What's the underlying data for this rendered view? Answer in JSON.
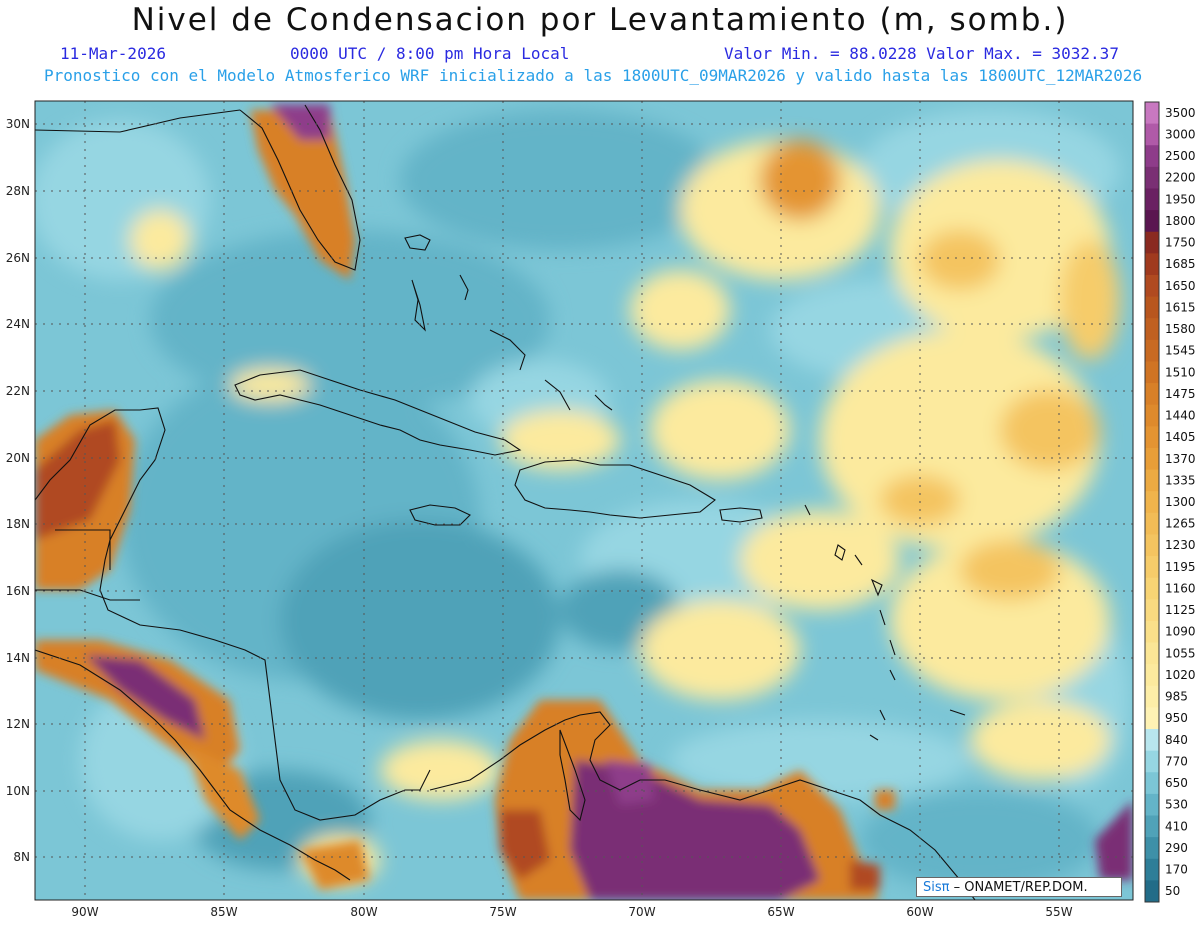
{
  "header": {
    "title": "Nivel de Condensacion por Levantamiento (m, somb.)",
    "date": "11-Mar-2026",
    "time": "0000 UTC / 8:00 pm Hora Local",
    "minmax": "Valor Min. = 88.0228   Valor Max. = 3032.37",
    "model_line": "Pronostico con el Modelo Atmosferico WRF inicializado a las 1800UTC_09MAR2026 y valido hasta las  1800UTC_12MAR2026"
  },
  "map": {
    "lat_labels": [
      "30N",
      "28N",
      "26N",
      "24N",
      "22N",
      "20N",
      "18N",
      "16N",
      "14N",
      "12N",
      "10N",
      "8N"
    ],
    "lon_labels": [
      "90W",
      "85W",
      "80W",
      "75W",
      "70W",
      "65W",
      "60W",
      "55W"
    ]
  },
  "colorbar": {
    "labels": [
      "3500",
      "3000",
      "2500",
      "2200",
      "1950",
      "1800",
      "1750",
      "1685",
      "1650",
      "1615",
      "1580",
      "1545",
      "1510",
      "1475",
      "1440",
      "1405",
      "1370",
      "1335",
      "1300",
      "1265",
      "1230",
      "1195",
      "1160",
      "1125",
      "1090",
      "1055",
      "1020",
      "985",
      "950",
      "840",
      "770",
      "650",
      "530",
      "410",
      "290",
      "170",
      "50"
    ],
    "colors": [
      "#c878c0",
      "#b05aa8",
      "#8e3c8a",
      "#7a2f74",
      "#6a2062",
      "#5a1650",
      "#8a2a20",
      "#a03a1e",
      "#b04a20",
      "#b8561e",
      "#c06020",
      "#c86a22",
      "#d07424",
      "#d88028",
      "#de8a2c",
      "#e49432",
      "#e89e38",
      "#ecaa42",
      "#f0b44c",
      "#f2bc56",
      "#f4c460",
      "#f6cc6a",
      "#f8d474",
      "#f9da80",
      "#fae08a",
      "#fbe696",
      "#fcea9e",
      "#fdeea8",
      "#fef2b4",
      "#b8e6ee",
      "#96d6e2",
      "#7cc6d6",
      "#64b4c8",
      "#50a2b8",
      "#3e90a8",
      "#2e7e98",
      "#226c88"
    ],
    "unit": ""
  },
  "credit": {
    "logo": "Sisπ",
    "text": " – ONAMET/REP.DOM."
  }
}
